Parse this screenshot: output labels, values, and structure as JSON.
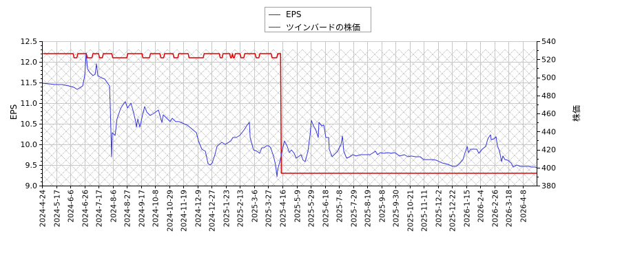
{
  "legend": {
    "items": [
      {
        "label": "EPS",
        "color": "#dd0000"
      },
      {
        "label": "ツインバードの株価",
        "color": "#3333dd"
      }
    ]
  },
  "chart_data": {
    "type": "line",
    "title": "",
    "xlabel": "",
    "ylabel": "EPS",
    "ylabel_right": "株価",
    "ylim": [
      9.0,
      12.5
    ],
    "ylim_right": [
      380,
      540
    ],
    "yticks": [
      9.0,
      9.5,
      10.0,
      10.5,
      11.0,
      11.5,
      12.0,
      12.5
    ],
    "yticks_right": [
      380,
      400,
      420,
      440,
      460,
      480,
      500,
      520,
      540
    ],
    "grid": true,
    "legend_position": "top-center",
    "x_index_unit": "trading day (0 = 2024-4-24)",
    "x_tick_every": 15,
    "x_max_index": 525,
    "x_ticks": [
      "2024-4-24",
      "2024-5-17",
      "2024-6-6",
      "2024-6-26",
      "2024-7-17",
      "2024-8-6",
      "2024-8-27",
      "2024-9-17",
      "2024-10-8",
      "2024-10-29",
      "2024-11-19",
      "2024-12-9",
      "2024-12-27",
      "2025-1-23",
      "2025-2-13",
      "2025-3-6",
      "2025-3-27",
      "2025-4-16",
      "2025-5-9",
      "2025-5-29",
      "2025-6-18",
      "2025-7-8",
      "2025-7-29",
      "2025-8-19",
      "2025-9-8",
      "2025-9-30",
      "2025-10-21",
      "2025-11-11",
      "2025-12-2",
      "2025-12-22",
      "2026-1-15",
      "2026-2-4",
      "2026-2-26",
      "2026-3-18",
      "2026-4-8"
    ],
    "hatch_region": {
      "from_index": 0,
      "to_index": 525,
      "eps_top": 12.3,
      "eps_bottom": 9.0
    },
    "series": [
      {
        "name": "EPS",
        "axis": "left",
        "color": "#dd0000",
        "points": [
          [
            1,
            12.2
          ],
          [
            33,
            12.2
          ],
          [
            34,
            12.1
          ],
          [
            37,
            12.1
          ],
          [
            38,
            12.2
          ],
          [
            47,
            12.2
          ],
          [
            48,
            12.1
          ],
          [
            53,
            12.1
          ],
          [
            54,
            12.2
          ],
          [
            60,
            12.2
          ],
          [
            61,
            12.1
          ],
          [
            64,
            12.1
          ],
          [
            65,
            12.2
          ],
          [
            74,
            12.2
          ],
          [
            75,
            12.1
          ],
          [
            90,
            12.1
          ],
          [
            91,
            12.2
          ],
          [
            106,
            12.2
          ],
          [
            107,
            12.1
          ],
          [
            114,
            12.1
          ],
          [
            115,
            12.2
          ],
          [
            125,
            12.2
          ],
          [
            126,
            12.1
          ],
          [
            129,
            12.1
          ],
          [
            130,
            12.2
          ],
          [
            139,
            12.2
          ],
          [
            140,
            12.1
          ],
          [
            144,
            12.1
          ],
          [
            145,
            12.2
          ],
          [
            155,
            12.2
          ],
          [
            156,
            12.1
          ],
          [
            171,
            12.1
          ],
          [
            172,
            12.2
          ],
          [
            188,
            12.2
          ],
          [
            189,
            12.1
          ],
          [
            191,
            12.1
          ],
          [
            192,
            12.2
          ],
          [
            199,
            12.2
          ],
          [
            200,
            12.1
          ],
          [
            201,
            12.1
          ],
          [
            202,
            12.2
          ],
          [
            203,
            12.1
          ],
          [
            204,
            12.1
          ],
          [
            205,
            12.2
          ],
          [
            210,
            12.2
          ],
          [
            211,
            12.1
          ],
          [
            214,
            12.1
          ],
          [
            215,
            12.2
          ],
          [
            226,
            12.2
          ],
          [
            227,
            12.1
          ],
          [
            230,
            12.1
          ],
          [
            231,
            12.2
          ],
          [
            243,
            12.2
          ],
          [
            244,
            12.1
          ],
          [
            249,
            12.1
          ],
          [
            250,
            12.2
          ],
          [
            253,
            12.2
          ],
          [
            253.8,
            9.3
          ],
          [
            525,
            9.3
          ]
        ]
      },
      {
        "name": "ツインバードの株価",
        "axis": "right",
        "color": "#3333dd",
        "points": [
          [
            0,
            493.5
          ],
          [
            6.6,
            492.8
          ],
          [
            13.9,
            492.0
          ],
          [
            21.2,
            492.0
          ],
          [
            28.5,
            490.5
          ],
          [
            33.6,
            489.0
          ],
          [
            37.3,
            486.7
          ],
          [
            40.9,
            489.0
          ],
          [
            43.1,
            490.5
          ],
          [
            45.3,
            501.9
          ],
          [
            46.8,
            527.0
          ],
          [
            48.2,
            509.5
          ],
          [
            50.4,
            505.7
          ],
          [
            54.1,
            501.9
          ],
          [
            56.3,
            503.4
          ],
          [
            57.7,
            514.9
          ],
          [
            59.2,
            501.9
          ],
          [
            62.8,
            499.6
          ],
          [
            66.5,
            498.1
          ],
          [
            70.1,
            492.8
          ],
          [
            71.6,
            490.5
          ],
          [
            72.3,
            469.1
          ],
          [
            73.8,
            412.0
          ],
          [
            74.5,
            438.7
          ],
          [
            77.5,
            435.6
          ],
          [
            79.6,
            453.9
          ],
          [
            83.3,
            465.3
          ],
          [
            85.5,
            469.1
          ],
          [
            88.4,
            473.0
          ],
          [
            90.6,
            466.1
          ],
          [
            94.3,
            471.4
          ],
          [
            96.4,
            463.8
          ],
          [
            99.4,
            450.9
          ],
          [
            100.1,
            444.8
          ],
          [
            101.6,
            453.9
          ],
          [
            103.8,
            444.8
          ],
          [
            106.7,
            458.5
          ],
          [
            108.9,
            467.6
          ],
          [
            111.1,
            461.5
          ],
          [
            114.7,
            457.7
          ],
          [
            118.4,
            460.0
          ],
          [
            123.5,
            463.8
          ],
          [
            127.1,
            450.1
          ],
          [
            128.6,
            458.5
          ],
          [
            132.3,
            454.7
          ],
          [
            135.9,
            450.9
          ],
          [
            138.1,
            454.7
          ],
          [
            141.8,
            450.9
          ],
          [
            145.4,
            450.9
          ],
          [
            150.5,
            448.6
          ],
          [
            154.2,
            447.0
          ],
          [
            158.6,
            443.2
          ],
          [
            163.7,
            438.7
          ],
          [
            165.9,
            429.5
          ],
          [
            169.5,
            420.4
          ],
          [
            173.2,
            418.1
          ],
          [
            176.1,
            404.4
          ],
          [
            178.3,
            402.9
          ],
          [
            180.5,
            405.1
          ],
          [
            183.4,
            414.3
          ],
          [
            185.6,
            423.4
          ],
          [
            187.8,
            425.7
          ],
          [
            190.7,
            428.0
          ],
          [
            194.4,
            425.7
          ],
          [
            196.6,
            427.2
          ],
          [
            200.2,
            429.5
          ],
          [
            202.4,
            433.3
          ],
          [
            206.0,
            433.3
          ],
          [
            209.7,
            435.6
          ],
          [
            212.6,
            439.4
          ],
          [
            214.8,
            442.5
          ],
          [
            217.0,
            446.3
          ],
          [
            219.9,
            450.1
          ],
          [
            220.7,
            433.3
          ],
          [
            224.3,
            419.6
          ],
          [
            228.0,
            418.1
          ],
          [
            230.9,
            415.8
          ],
          [
            233.1,
            421.9
          ],
          [
            235.3,
            421.9
          ],
          [
            238.2,
            424.2
          ],
          [
            240.4,
            424.2
          ],
          [
            242.6,
            421.9
          ],
          [
            245.5,
            412.8
          ],
          [
            247.7,
            402.9
          ],
          [
            249.2,
            389.9
          ],
          [
            249.9,
            397.5
          ],
          [
            252.8,
            408.9
          ],
          [
            255.0,
            420.4
          ],
          [
            257.2,
            429.5
          ],
          [
            260.1,
            423.4
          ],
          [
            262.3,
            416.6
          ],
          [
            264.5,
            419.6
          ],
          [
            267.4,
            415.8
          ],
          [
            269.6,
            410.5
          ],
          [
            271.8,
            412.0
          ],
          [
            274.7,
            414.3
          ],
          [
            276.9,
            408.2
          ],
          [
            279.1,
            406.7
          ],
          [
            282.0,
            418.1
          ],
          [
            284.2,
            435.6
          ],
          [
            285.7,
            452.4
          ],
          [
            287.9,
            446.3
          ],
          [
            290.1,
            442.5
          ],
          [
            293.0,
            433.3
          ],
          [
            293.7,
            450.1
          ],
          [
            296.7,
            446.3
          ],
          [
            298.9,
            447.0
          ],
          [
            301.0,
            433.3
          ],
          [
            304.0,
            433.3
          ],
          [
            304.7,
            420.4
          ],
          [
            307.6,
            412.0
          ],
          [
            309.8,
            414.3
          ],
          [
            313.5,
            418.1
          ],
          [
            317.1,
            425.7
          ],
          [
            318.6,
            434.9
          ],
          [
            320.0,
            418.1
          ],
          [
            323.0,
            410.5
          ],
          [
            326.6,
            412.0
          ],
          [
            329.5,
            414.3
          ],
          [
            333.2,
            412.8
          ],
          [
            337.6,
            414.3
          ],
          [
            341.2,
            414.3
          ],
          [
            347.8,
            414.3
          ],
          [
            351.5,
            416.6
          ],
          [
            353.6,
            418.1
          ],
          [
            355.8,
            414.3
          ],
          [
            358.8,
            416.6
          ],
          [
            362.4,
            415.8
          ],
          [
            366.8,
            416.6
          ],
          [
            370.5,
            415.8
          ],
          [
            374.1,
            416.6
          ],
          [
            379.2,
            412.8
          ],
          [
            384.3,
            414.3
          ],
          [
            388.0,
            412.0
          ],
          [
            391.6,
            412.8
          ],
          [
            396.0,
            412.0
          ],
          [
            401.2,
            412.0
          ],
          [
            404.8,
            408.9
          ],
          [
            409.9,
            408.9
          ],
          [
            414.3,
            408.9
          ],
          [
            418.0,
            408.2
          ],
          [
            424.5,
            405.1
          ],
          [
            430.4,
            403.6
          ],
          [
            435.5,
            401.3
          ],
          [
            439.2,
            401.3
          ],
          [
            442.8,
            404.4
          ],
          [
            446.5,
            408.9
          ],
          [
            448.7,
            416.6
          ],
          [
            450.9,
            423.4
          ],
          [
            452.3,
            416.6
          ],
          [
            454.5,
            420.4
          ],
          [
            458.2,
            420.4
          ],
          [
            461.1,
            420.4
          ],
          [
            463.3,
            415.8
          ],
          [
            466.9,
            420.4
          ],
          [
            470.6,
            423.4
          ],
          [
            472.8,
            431.8
          ],
          [
            475.7,
            436.4
          ],
          [
            476.4,
            431.0
          ],
          [
            479.3,
            431.8
          ],
          [
            481.5,
            434.1
          ],
          [
            483.0,
            424.2
          ],
          [
            485.2,
            418.1
          ],
          [
            487.4,
            406.7
          ],
          [
            488.8,
            412.8
          ],
          [
            491.0,
            408.9
          ],
          [
            493.9,
            408.2
          ],
          [
            497.6,
            405.1
          ],
          [
            499.8,
            400.6
          ],
          [
            503.4,
            402.9
          ],
          [
            507.1,
            401.3
          ],
          [
            512.2,
            401.3
          ],
          [
            515.9,
            401.3
          ],
          [
            519.5,
            400.6
          ],
          [
            523.2,
            400.6
          ],
          [
            524.6,
            399.8
          ]
        ]
      }
    ]
  }
}
